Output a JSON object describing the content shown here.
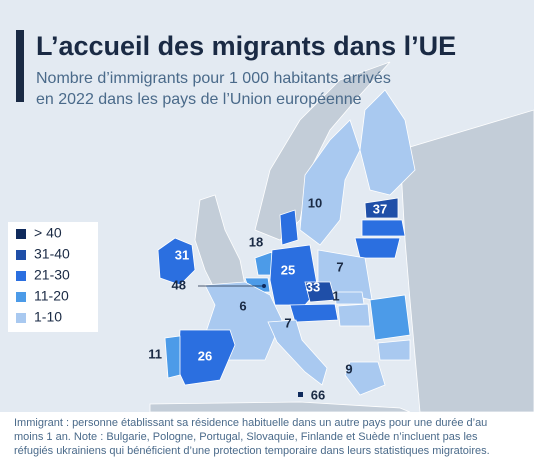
{
  "header": {
    "title": "L’accueil des migrants dans l’UE",
    "subtitle": [
      "Nombre d’immigrants pour 1 000 habitants arrivés",
      "en 2022 dans les pays de l’Union européenne"
    ]
  },
  "legend": {
    "items": [
      {
        "label": "> 40",
        "color": "#0f2a5c"
      },
      {
        "label": "31-40",
        "color": "#1f4fa8"
      },
      {
        "label": "21-30",
        "color": "#2b6fe0"
      },
      {
        "label": "11-20",
        "color": "#4c9be8"
      },
      {
        "label": "1-10",
        "color": "#a9c9f0"
      }
    ]
  },
  "map_labels": [
    31,
    10,
    37,
    18,
    25,
    7,
    48,
    33,
    1,
    6,
    7,
    11,
    26,
    9,
    66
  ],
  "footnote": [
    "Immigrant : personne établissant sa résidence habituelle dans un autre pays pour une durée d’au",
    "moins 1 an. Note : Bulgarie, Pologne, Portugal, Slovaquie, Finlande et Suède n’incluent pas les",
    "réfugiés ukrainiens qui bénéficient d’une protection temporaire dans leurs statistiques migratoires."
  ]
}
